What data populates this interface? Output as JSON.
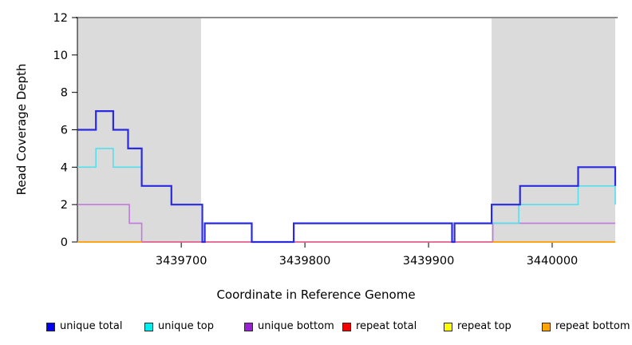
{
  "chart_data": {
    "type": "line",
    "subtype": "step-coverage",
    "title": "",
    "xlabel": "Coordinate in Reference Genome",
    "ylabel": "Read Coverage Depth",
    "x_domain": [
      3439616,
      3440051
    ],
    "y_domain": [
      0,
      12
    ],
    "grid": false,
    "x_ticks": [
      {
        "v": 3439700,
        "label": "3439700"
      },
      {
        "v": 3439800,
        "label": "3439800"
      },
      {
        "v": 3439900,
        "label": "3439900"
      },
      {
        "v": 3440000,
        "label": "3440000"
      }
    ],
    "y_ticks": [
      {
        "v": 0,
        "label": "0"
      },
      {
        "v": 2,
        "label": "2"
      },
      {
        "v": 4,
        "label": "4"
      },
      {
        "v": 6,
        "label": "6"
      },
      {
        "v": 8,
        "label": "8"
      },
      {
        "v": 10,
        "label": "10"
      },
      {
        "v": 12,
        "label": "12"
      }
    ],
    "shaded_regions": [
      {
        "name": "repeat-region-left",
        "x1": 3439616,
        "x2": 3439716,
        "color": "#dbdbdb"
      },
      {
        "name": "repeat-region-right",
        "x1": 3439951,
        "x2": 3440051,
        "color": "#dbdbdb"
      }
    ],
    "top_line": {
      "y": 12,
      "color": "#8c8c8c",
      "width": 2
    },
    "series": [
      {
        "name": "unique bottom",
        "color": "#be7bdc",
        "width": 1.6,
        "segments": [
          {
            "points": [
              [
                3439616,
                2
              ],
              [
                3439658,
                1
              ],
              [
                3439668,
                0
              ],
              [
                3439952,
                1
              ]
            ],
            "end": 3440051,
            "end_value": null
          }
        ]
      },
      {
        "name": "repeat top",
        "color": "#ffee00",
        "width": 1.4,
        "segments": [
          {
            "points": [
              [
                3439616,
                0
              ]
            ],
            "end": 3439668,
            "end_value": null
          },
          {
            "points": [
              [
                3439952,
                0
              ]
            ],
            "end": 3440051,
            "end_value": null
          }
        ]
      },
      {
        "name": "repeat total",
        "color": "#e85a80",
        "width": 1.4,
        "segments": [
          {
            "points": [
              [
                3439668,
                0
              ]
            ],
            "end": 3440051,
            "end_value": null
          }
        ]
      },
      {
        "name": "repeat bottom",
        "color": "#ffa516",
        "width": 2,
        "segments": [
          {
            "points": [
              [
                3439616,
                0
              ]
            ],
            "end": 3439668,
            "end_value": null
          },
          {
            "points": [
              [
                3439952,
                0
              ]
            ],
            "end": 3440051,
            "end_value": null
          }
        ]
      },
      {
        "name": "unique top",
        "color": "#55dfec",
        "width": 1.6,
        "segments": [
          {
            "points": [
              [
                3439616,
                4
              ],
              [
                3439631,
                5
              ],
              [
                3439645,
                4
              ],
              [
                3439668,
                3
              ],
              [
                3439692,
                2
              ],
              [
                3439717,
                0
              ],
              [
                3439719,
                1
              ],
              [
                3439757,
                0
              ],
              [
                3439791,
                1
              ],
              [
                3439919,
                0
              ],
              [
                3439921,
                1
              ],
              [
                3439973,
                2
              ],
              [
                3440021,
                3
              ]
            ],
            "end": 3440051,
            "end_value": 2
          }
        ]
      },
      {
        "name": "unique total",
        "color": "#2a2ae0",
        "width": 2.2,
        "segments": [
          {
            "points": [
              [
                3439616,
                6
              ],
              [
                3439631,
                7
              ],
              [
                3439645,
                6
              ],
              [
                3439657,
                5
              ],
              [
                3439668,
                3
              ],
              [
                3439692,
                2
              ],
              [
                3439717,
                0
              ],
              [
                3439719,
                1
              ],
              [
                3439757,
                0
              ],
              [
                3439791,
                1
              ],
              [
                3439919,
                0
              ],
              [
                3439921,
                1
              ],
              [
                3439951,
                2
              ],
              [
                3439974,
                3
              ],
              [
                3440021,
                4
              ]
            ],
            "end": 3440051,
            "end_value": 3
          }
        ]
      }
    ]
  },
  "legend": {
    "items": [
      {
        "label": "unique total",
        "color": "#0000f5"
      },
      {
        "label": "unique top",
        "color": "#00eeee"
      },
      {
        "label": "unique bottom",
        "color": "#9b1fd9"
      },
      {
        "label": "repeat total",
        "color": "#f50000"
      },
      {
        "label": "repeat top",
        "color": "#ffff00"
      },
      {
        "label": "repeat bottom",
        "color": "#ffa500"
      }
    ]
  }
}
